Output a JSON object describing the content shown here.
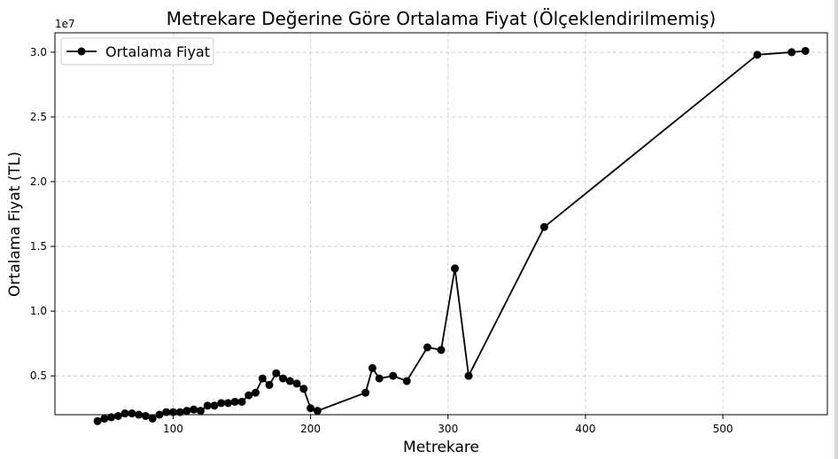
{
  "chart_data": {
    "type": "line",
    "title": "Metrekare Değerine Göre Ortalama Fiyat (Ölçeklendirilmemiş)",
    "xlabel": "Metrekare",
    "ylabel": "Ortalama Fiyat (TL)",
    "y_offset_text": "1e7",
    "xlim": [
      14,
      576
    ],
    "ylim": [
      0.2,
      3.15
    ],
    "x_ticks": [
      100,
      200,
      300,
      400,
      500
    ],
    "y_ticks": [
      0.5,
      1.0,
      1.5,
      2.0,
      2.5,
      3.0
    ],
    "grid": true,
    "legend_position": "top-left",
    "line_color": "#000000",
    "series": [
      {
        "name": "Ortalama Fiyat",
        "x": [
          45,
          50,
          55,
          60,
          65,
          70,
          75,
          80,
          85,
          90,
          95,
          100,
          105,
          110,
          115,
          120,
          125,
          130,
          135,
          140,
          145,
          150,
          155,
          160,
          165,
          170,
          175,
          180,
          185,
          190,
          195,
          200,
          205,
          240,
          245,
          250,
          260,
          270,
          285,
          295,
          305,
          315,
          370,
          525,
          550,
          560
        ],
        "y": [
          0.15,
          0.17,
          0.18,
          0.19,
          0.21,
          0.21,
          0.2,
          0.19,
          0.17,
          0.2,
          0.22,
          0.22,
          0.22,
          0.23,
          0.24,
          0.23,
          0.27,
          0.27,
          0.29,
          0.29,
          0.3,
          0.3,
          0.35,
          0.37,
          0.48,
          0.43,
          0.52,
          0.48,
          0.46,
          0.44,
          0.4,
          0.25,
          0.23,
          0.37,
          0.56,
          0.48,
          0.5,
          0.46,
          0.72,
          0.7,
          1.33,
          0.5,
          1.65,
          2.98,
          3.0,
          3.01
        ]
      }
    ]
  }
}
